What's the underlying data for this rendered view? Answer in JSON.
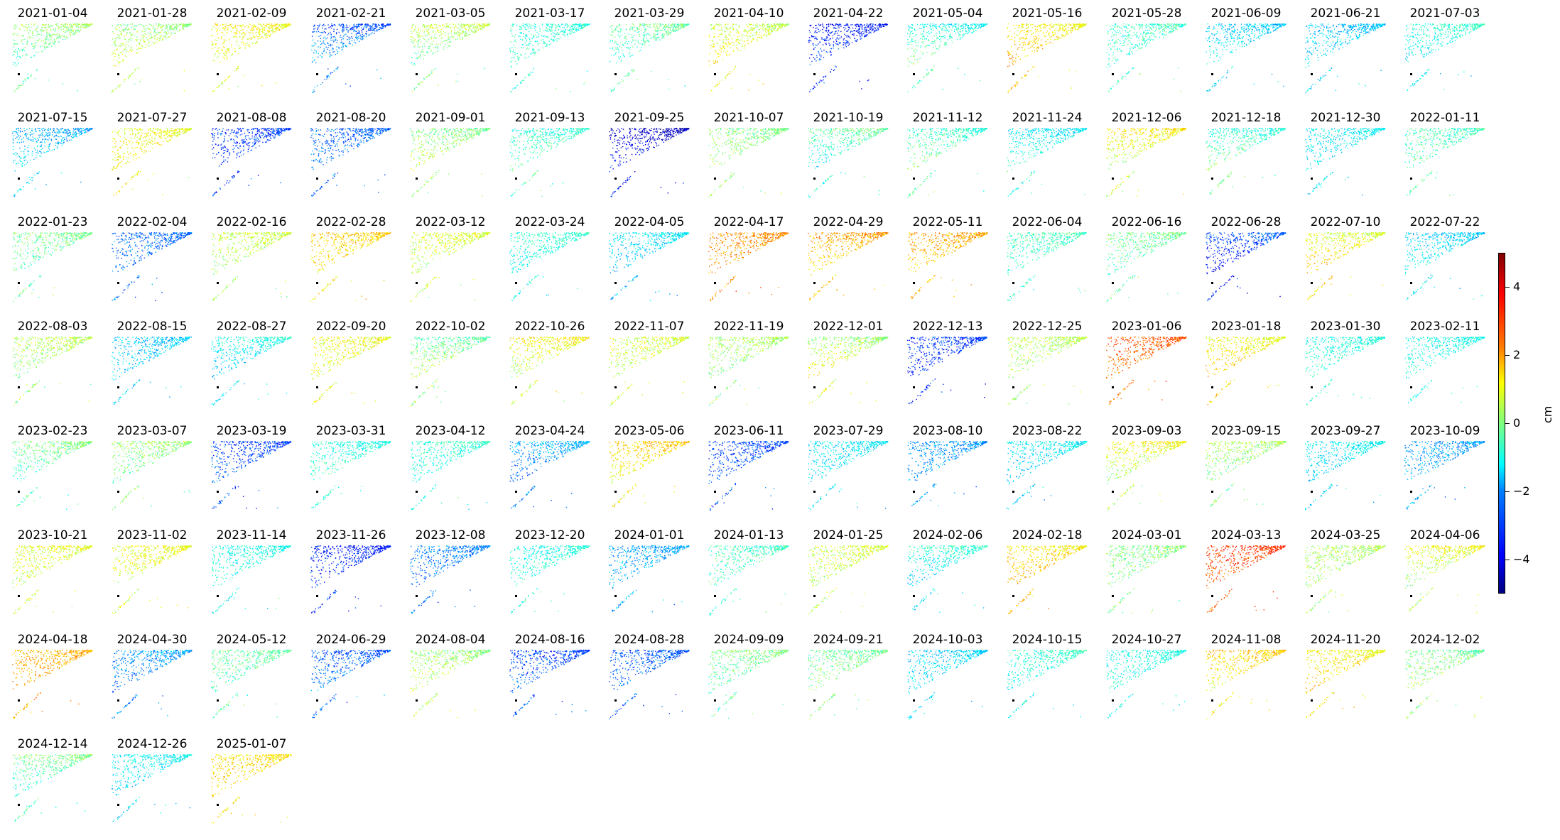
{
  "chart_data": {
    "type": "heatmap",
    "description": "Small-multiples grid of displacement maps (scatter of measurement points colored by jet colormap)",
    "panel_dates": [
      "2021-01-04",
      "2021-01-28",
      "2021-02-09",
      "2021-02-21",
      "2021-03-05",
      "2021-03-17",
      "2021-03-29",
      "2021-04-10",
      "2021-04-22",
      "2021-05-04",
      "2021-05-16",
      "2021-05-28",
      "2021-06-09",
      "2021-06-21",
      "2021-07-03",
      "2021-07-15",
      "2021-07-27",
      "2021-08-08",
      "2021-08-20",
      "2021-09-01",
      "2021-09-13",
      "2021-09-25",
      "2021-10-07",
      "2021-10-19",
      "2021-11-12",
      "2021-11-24",
      "2021-12-06",
      "2021-12-18",
      "2021-12-30",
      "2022-01-11",
      "2022-01-23",
      "2022-02-04",
      "2022-02-16",
      "2022-02-28",
      "2022-03-12",
      "2022-03-24",
      "2022-04-05",
      "2022-04-17",
      "2022-04-29",
      "2022-05-11",
      "2022-06-04",
      "2022-06-16",
      "2022-06-28",
      "2022-07-10",
      "2022-07-22",
      "2022-08-03",
      "2022-08-15",
      "2022-08-27",
      "2022-09-20",
      "2022-10-02",
      "2022-10-26",
      "2022-11-07",
      "2022-11-19",
      "2022-12-01",
      "2022-12-13",
      "2022-12-25",
      "2023-01-06",
      "2023-01-18",
      "2023-01-30",
      "2023-02-11",
      "2023-02-23",
      "2023-03-07",
      "2023-03-19",
      "2023-03-31",
      "2023-04-12",
      "2023-04-24",
      "2023-05-06",
      "2023-06-11",
      "2023-07-29",
      "2023-08-10",
      "2023-08-22",
      "2023-09-03",
      "2023-09-15",
      "2023-09-27",
      "2023-10-09",
      "2023-10-21",
      "2023-11-02",
      "2023-11-14",
      "2023-11-26",
      "2023-12-08",
      "2023-12-20",
      "2024-01-01",
      "2024-01-13",
      "2024-01-25",
      "2024-02-06",
      "2024-02-18",
      "2024-03-01",
      "2024-03-13",
      "2024-03-25",
      "2024-04-06",
      "2024-04-18",
      "2024-04-30",
      "2024-05-12",
      "2024-06-29",
      "2024-08-04",
      "2024-08-16",
      "2024-08-28",
      "2024-09-09",
      "2024-09-21",
      "2024-10-03",
      "2024-10-15",
      "2024-10-27",
      "2024-11-08",
      "2024-11-20",
      "2024-12-02",
      "2024-12-14",
      "2024-12-26",
      "2025-01-07"
    ],
    "panel_mean_cm": [
      -0.3,
      0.6,
      1.0,
      -2.4,
      0.0,
      -0.8,
      -0.6,
      1.1,
      -3.3,
      -0.5,
      1.7,
      -0.7,
      -1.4,
      -1.6,
      -1.2,
      -1.7,
      1.2,
      -3.2,
      -2.6,
      0.4,
      -0.6,
      -3.8,
      0.2,
      -0.9,
      -0.3,
      -1.0,
      0.8,
      -0.3,
      -1.4,
      -0.5,
      -0.3,
      -2.6,
      0.4,
      1.5,
      0.7,
      -1.0,
      -1.8,
      2.3,
      1.7,
      1.8,
      -0.7,
      -0.3,
      -3.5,
      1.5,
      -1.4,
      0.2,
      -1.7,
      -1.5,
      1.0,
      0.2,
      0.8,
      0.6,
      0.2,
      0.9,
      -3.3,
      0.4,
      2.7,
      1.6,
      -0.9,
      -1.0,
      -0.5,
      0.0,
      -2.9,
      -0.8,
      -0.9,
      -2.5,
      1.3,
      -3.0,
      -1.5,
      -2.2,
      -1.6,
      0.6,
      0.1,
      -1.5,
      -2.1,
      0.8,
      0.9,
      -1.0,
      -3.3,
      -2.6,
      -1.0,
      -2.0,
      -0.6,
      0.6,
      -1.4,
      1.8,
      0.0,
      2.9,
      0.4,
      0.5,
      2.1,
      -2.5,
      -0.4,
      -2.6,
      0.5,
      -2.9,
      -2.8,
      -0.3,
      0.0,
      -1.6,
      -1.0,
      -1.0,
      1.3,
      1.5,
      0.2,
      -0.6,
      -1.5,
      1.5
    ],
    "colorbar": {
      "colormap": "jet",
      "range": [
        -5,
        5
      ],
      "ticks": [
        "4",
        "2",
        "0",
        "−2",
        "−4"
      ],
      "tick_values": [
        4,
        2,
        0,
        -2,
        -4
      ],
      "label": "cm"
    },
    "reference_marker_color": "#000000",
    "point_density_note": "points denser near top edge, sparse trailing line toward bottom-left"
  }
}
